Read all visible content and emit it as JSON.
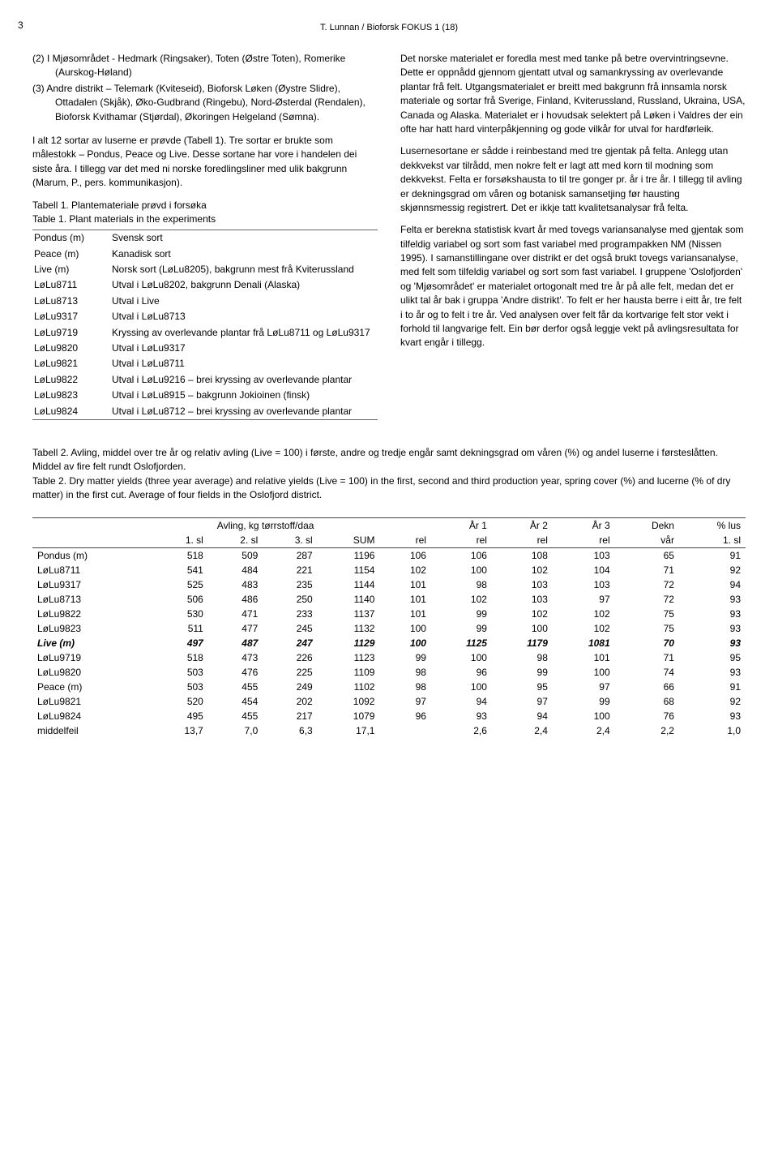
{
  "page_number": "3",
  "running_head": "T. Lunnan / Bioforsk FOKUS 1 (18)",
  "left": {
    "item2_num": "(2)",
    "item2": "I Mjøsområdet - Hedmark (Ringsaker), Toten (Østre Toten), Romerike (Aurskog-Høland)",
    "item3_num": "(3)",
    "item3": "Andre distrikt – Telemark (Kviteseid), Bioforsk Løken (Øystre Slidre), Ottadalen (Skjåk), Øko-Gudbrand (Ringebu), Nord-Østerdal (Rendalen), Bioforsk Kvithamar (Stjørdal), Økoringen Helgeland (Sømna).",
    "para1": "I alt 12 sortar av luserne er prøvde (Tabell 1). Tre sortar er brukte som målestokk – Pondus, Peace og Live. Desse sortane har vore i handelen dei siste åra. I tillegg var det med ni norske foredlingsliner med ulik bakgrunn (Marum, P., pers. kommunikasjon).",
    "tbl1_cap_no": "Tabell 1. Plantemateriale prøvd i forsøka",
    "tbl1_cap_en": "Table 1. Plant materials in the experiments",
    "tbl1": [
      [
        "Pondus (m)",
        "Svensk sort"
      ],
      [
        "Peace (m)",
        "Kanadisk sort"
      ],
      [
        "Live (m)",
        "Norsk sort (LøLu8205), bakgrunn mest frå Kviterussland"
      ],
      [
        "LøLu8711",
        "Utval i LøLu8202, bakgrunn Denali (Alaska)"
      ],
      [
        "LøLu8713",
        "Utval i Live"
      ],
      [
        "LøLu9317",
        "Utval i LøLu8713"
      ],
      [
        "LøLu9719",
        "Kryssing av overlevande plantar frå LøLu8711 og LøLu9317"
      ],
      [
        "LøLu9820",
        "Utval i LøLu9317"
      ],
      [
        "LøLu9821",
        "Utval i LøLu8711"
      ],
      [
        "LøLu9822",
        "Utval i LøLu9216 – brei kryssing av overlevande plantar"
      ],
      [
        "LøLu9823",
        "Utval i LøLu8915 – bakgrunn Jokioinen (finsk)"
      ],
      [
        "LøLu9824",
        "Utval i LøLu8712 – brei kryssing av overlevande plantar"
      ]
    ]
  },
  "right": {
    "para1": "Det norske materialet er foredla mest med tanke på betre overvintringsevne. Dette er oppnådd gjennom gjentatt utval og samankryssing av overlevande plantar frå felt. Utgangsmaterialet er breitt med bakgrunn frå innsamla norsk materiale og sortar frå Sverige, Finland, Kviterussland, Russland, Ukraina, USA, Canada og Alaska. Materialet er i hovudsak selektert på Løken i Valdres der ein ofte har hatt hard vinterpåkjenning og gode vilkår for utval for hardførleik.",
    "para2": "Lusernesortane er sådde i reinbestand med tre gjentak på felta. Anlegg utan dekkvekst var tilrådd, men nokre felt er lagt att med korn til modning som dekkvekst. Felta er forsøkshausta to til tre gonger pr. år i tre år. I tillegg til avling er dekningsgrad om våren og botanisk samansetjing før hausting skjønnsmessig registrert. Det er ikkje tatt kvalitetsanalysar frå felta.",
    "para3": "Felta er berekna statistisk kvart år med tovegs variansanalyse med gjentak som tilfeldig variabel og sort som fast variabel med programpakken NM (Nissen 1995). I samanstillingane over distrikt er det også brukt tovegs variansanalyse, med felt som tilfeldig variabel og sort som fast variabel. I gruppene 'Oslofjorden' og 'Mjøsområdet' er materialet ortogonalt med tre år på alle felt, medan det er ulikt tal år bak i gruppa 'Andre distrikt'. To felt er her hausta berre i eitt år, tre felt i to år og to felt i tre år. Ved analysen over felt får da kortvarige felt stor vekt i forhold til langvarige felt. Ein bør derfor også leggje vekt på avlingsresultata for kvart engår i tillegg."
  },
  "tbl2_cap_no": "Tabell 2. Avling, middel over tre år og relativ avling (Live = 100) i første, andre og tredje engår samt dekningsgrad om våren (%) og andel luserne i førsteslåtten. Middel av fire felt rundt Oslofjorden.",
  "tbl2_cap_en": "Table 2. Dry matter yields (three year average) and relative yields (Live = 100) in the first, second and third production year, spring cover (%) and lucerne (% of dry matter) in the first cut. Average of four fields in the Oslofjord district.",
  "tbl2": {
    "group_label": "Avling, kg tørrstoff/daa",
    "col_heads": [
      "",
      "1. sl",
      "2. sl",
      "3. sl",
      "SUM",
      "rel",
      "rel",
      "rel",
      "rel",
      "vår",
      "1. sl"
    ],
    "top_heads": [
      "År 1",
      "År 2",
      "År 3",
      "Dekn",
      "% lus"
    ],
    "rows": [
      {
        "label": "Pondus (m)",
        "vals": [
          "518",
          "509",
          "287",
          "1196",
          "106",
          "106",
          "108",
          "103",
          "65",
          "91"
        ]
      },
      {
        "label": "LøLu8711",
        "vals": [
          "541",
          "484",
          "221",
          "1154",
          "102",
          "100",
          "102",
          "104",
          "71",
          "92"
        ]
      },
      {
        "label": "LøLu9317",
        "vals": [
          "525",
          "483",
          "235",
          "1144",
          "101",
          "98",
          "103",
          "103",
          "72",
          "94"
        ]
      },
      {
        "label": "LøLu8713",
        "vals": [
          "506",
          "486",
          "250",
          "1140",
          "101",
          "102",
          "103",
          "97",
          "72",
          "93"
        ]
      },
      {
        "label": "LøLu9822",
        "vals": [
          "530",
          "471",
          "233",
          "1137",
          "101",
          "99",
          "102",
          "102",
          "75",
          "93"
        ]
      },
      {
        "label": "LøLu9823",
        "vals": [
          "511",
          "477",
          "245",
          "1132",
          "100",
          "99",
          "100",
          "102",
          "75",
          "93"
        ]
      },
      {
        "label": "Live (m)",
        "vals": [
          "497",
          "487",
          "247",
          "1129",
          "100",
          "1125",
          "1179",
          "1081",
          "70",
          "93"
        ],
        "live": true
      },
      {
        "label": "LøLu9719",
        "vals": [
          "518",
          "473",
          "226",
          "1123",
          "99",
          "100",
          "98",
          "101",
          "71",
          "95"
        ]
      },
      {
        "label": "LøLu9820",
        "vals": [
          "503",
          "476",
          "225",
          "1109",
          "98",
          "96",
          "99",
          "100",
          "74",
          "93"
        ]
      },
      {
        "label": "Peace (m)",
        "vals": [
          "503",
          "455",
          "249",
          "1102",
          "98",
          "100",
          "95",
          "97",
          "66",
          "91"
        ]
      },
      {
        "label": "LøLu9821",
        "vals": [
          "520",
          "454",
          "202",
          "1092",
          "97",
          "94",
          "97",
          "99",
          "68",
          "92"
        ]
      },
      {
        "label": "LøLu9824",
        "vals": [
          "495",
          "455",
          "217",
          "1079",
          "96",
          "93",
          "94",
          "100",
          "76",
          "93"
        ]
      },
      {
        "label": "middelfeil",
        "vals": [
          "13,7",
          "7,0",
          "6,3",
          "17,1",
          "",
          "2,6",
          "2,4",
          "2,4",
          "2,2",
          "1,0"
        ]
      }
    ]
  }
}
